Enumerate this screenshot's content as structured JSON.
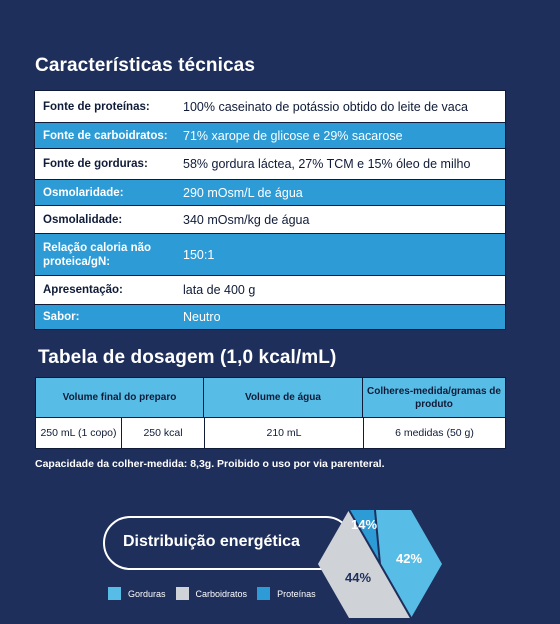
{
  "specs": {
    "title": "Características técnicas",
    "rows": [
      {
        "label": "Fonte de proteínas:",
        "value": "100% caseinato de potássio obtido do leite de vaca"
      },
      {
        "label": "Fonte de carboidratos:",
        "value": "71% xarope de glicose e 29% sacarose"
      },
      {
        "label": "Fonte de gorduras:",
        "value": "58% gordura láctea, 27% TCM e 15% óleo de milho"
      },
      {
        "label": "Osmolaridade:",
        "value": "290 mOsm/L de água"
      },
      {
        "label": "Osmolalidade:",
        "value": "340 mOsm/kg de água"
      },
      {
        "label": "Relação caloria não proteica/gN:",
        "value": "150:1"
      },
      {
        "label": "Apresentação:",
        "value": "lata de 400 g"
      },
      {
        "label": "Sabor:",
        "value": "Neutro"
      }
    ]
  },
  "dosage": {
    "title": "Tabela de dosagem (1,0 kcal/mL)",
    "headers": [
      "Volume final do preparo",
      "Volume de água",
      "Colheres-medida/gramas de produto"
    ],
    "row": [
      "250 mL (1 copo)",
      "250 kcal",
      "210 mL",
      "6 medidas (50 g)"
    ],
    "footnote": "Capacidade da colher-medida: 8,3g. Proibido o uso por via parenteral."
  },
  "energy": {
    "title": "Distribuição energética",
    "slices": [
      {
        "name": "Gorduras",
        "value": 42,
        "label": "42%",
        "color": "#58bde6"
      },
      {
        "name": "Carboidratos",
        "value": 44,
        "label": "44%",
        "color": "#cfd3d8"
      },
      {
        "name": "Proteínas",
        "value": 14,
        "label": "14%",
        "color": "#2d9bd6"
      }
    ]
  }
}
